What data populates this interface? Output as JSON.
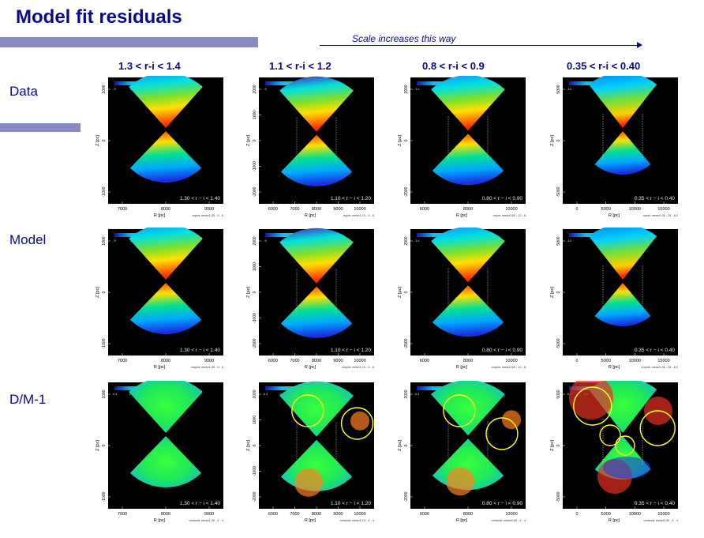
{
  "title": "Model fit residuals",
  "scale_note": "Scale increases this way",
  "columns": [
    {
      "label": "1.3 < r-i < 1.4",
      "panel_label": "1.30 < r − i < 1.40",
      "yticks": [
        "1000",
        "0",
        "-1000"
      ],
      "xticks": [
        "7000",
        "8000",
        "9000"
      ],
      "cbar_ticks_data": [
        "-9",
        "-8",
        "-7",
        "-6",
        "-5"
      ],
      "cbar_ticks_resid": [
        "-0.4",
        "-0.2",
        "0",
        "0.2",
        "0.4"
      ],
      "foot": [
        "mplot: mean1.30 - 9 - 6",
        "nmplot: mean1.30 - 9 - 6",
        "nmresid: mean1.30 - 4 - 4"
      ]
    },
    {
      "label": "1.1 < r-i < 1.2",
      "panel_label": "1.10 < r − i < 1.20",
      "yticks": [
        "2000",
        "1000",
        "0",
        "-1000",
        "-2000"
      ],
      "xticks": [
        "6000",
        "7000",
        "8000",
        "9000",
        "10000"
      ],
      "cbar_ticks_data": [
        "-9",
        "-8",
        "-7",
        "-6",
        "-5"
      ],
      "cbar_ticks_resid": [
        "-0.4",
        "-0.2",
        "0",
        "0.2",
        "0.4"
      ],
      "foot": [
        "mplot: mean1.10 - 9 - 6",
        "nmplot: mean1.10 - 9 - 6",
        "nmresid: mean1.10 - 4 - 4"
      ]
    },
    {
      "label": "0.8 < r-i < 0.9",
      "panel_label": "0.80 < r − i < 0.90",
      "yticks": [
        "2000",
        "0",
        "-2000"
      ],
      "xticks": [
        "6000",
        "8000",
        "10000"
      ],
      "cbar_ticks_data": [
        "-14",
        "-12",
        "-10",
        "-8"
      ],
      "cbar_ticks_resid": [
        "-0.4",
        "-0.2",
        "0",
        "0.2",
        "0.4"
      ],
      "foot": [
        "mplot: mean0.80 - 12 - 8",
        "nmplot: mean0.80 - 12 - 8",
        "nmresid: mean0.80 - 4 - 4"
      ]
    },
    {
      "label": "0.35 < r-i < 0.40",
      "panel_label": "0.35 < r − i < 0.40",
      "yticks": [
        "5000",
        "0",
        "-5000"
      ],
      "xticks": [
        "0",
        "5000",
        "10000",
        "15000"
      ],
      "cbar_ticks_data": [
        "-14",
        "-12",
        "-10"
      ],
      "cbar_ticks_resid": [
        "-0.4",
        "-0.2",
        "0",
        "0.2",
        "0.4"
      ],
      "foot": [
        "mplot: mean0.35 - 15 - 6.2",
        "nmplot: mean0.35 - 15 - 6.2",
        "nmresid: mean0.35 - 4 - 4"
      ]
    }
  ],
  "rows": [
    {
      "label": "Data"
    },
    {
      "label": "Model"
    },
    {
      "label": "D/M-1"
    }
  ],
  "axis_labels": {
    "x": "R [pc]",
    "y": "Z [pc]"
  },
  "colors": {
    "heading": "#0a0a8a",
    "accent_bar": "#8a8ac2",
    "panel_bg": "#000000",
    "circle": "#ffff30"
  }
}
